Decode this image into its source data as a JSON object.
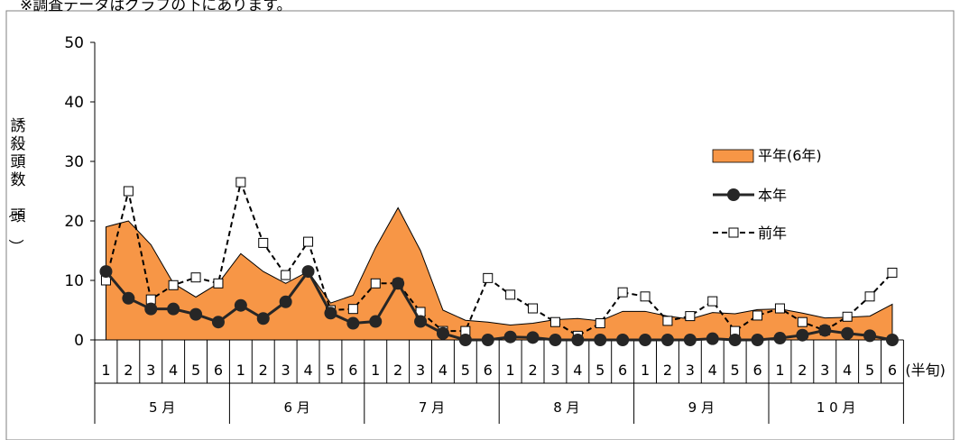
{
  "note": "※調査データはグラフの下にあります。",
  "chart_data": {
    "type": "line",
    "title": "",
    "ylabel": "誘殺頭数（頭）",
    "xunit": "(半旬)",
    "ylim": [
      0,
      50
    ],
    "yticks": [
      0,
      10,
      20,
      30,
      40,
      50
    ],
    "months": [
      "5 月",
      "6 月",
      "7 月",
      "8 月",
      "9 月",
      "1 0 月"
    ],
    "categories": [
      "1",
      "2",
      "3",
      "4",
      "5",
      "6",
      "1",
      "2",
      "3",
      "4",
      "5",
      "6",
      "1",
      "2",
      "3",
      "4",
      "5",
      "6",
      "1",
      "2",
      "3",
      "4",
      "5",
      "6",
      "1",
      "2",
      "3",
      "4",
      "5",
      "6",
      "1",
      "2",
      "3",
      "4",
      "5",
      "6"
    ],
    "series": [
      {
        "name": "平年(6年)",
        "kind": "area",
        "color": "#F79646",
        "values": [
          19,
          20,
          16,
          9.5,
          7.2,
          9.5,
          14.5,
          11.5,
          9.5,
          11.5,
          6.2,
          7.5,
          15.5,
          22.2,
          15,
          5,
          3.3,
          3,
          2.5,
          2.8,
          3.4,
          3.6,
          3.2,
          4.8,
          4.8,
          4,
          3.5,
          4.6,
          4.4,
          5.1,
          5.2,
          4.5,
          3.7,
          3.8,
          4.0,
          6.0
        ]
      },
      {
        "name": "本年",
        "kind": "solid",
        "color": "#262626",
        "values": [
          11.5,
          7,
          5.2,
          5.2,
          4.3,
          3,
          5.8,
          3.6,
          6.4,
          11.5,
          4.5,
          2.8,
          3.1,
          9.5,
          3.1,
          1.1,
          0,
          0,
          0.5,
          0.4,
          0,
          0,
          0,
          0,
          0,
          0,
          0,
          0.2,
          0,
          0,
          0.3,
          0.8,
          1.6,
          1.1,
          0.7,
          0
        ]
      },
      {
        "name": "前年",
        "kind": "dashed",
        "color": "#000000",
        "values": [
          10,
          25,
          6.8,
          9.2,
          10.5,
          9.5,
          26.5,
          16.3,
          10.9,
          16.5,
          5,
          5.2,
          9.5,
          9.5,
          4.7,
          1.5,
          1.5,
          10.4,
          7.6,
          5.3,
          3,
          0.7,
          2.8,
          8,
          7.3,
          3.2,
          4,
          6.5,
          1.5,
          4.1,
          5.3,
          3,
          1.6,
          3.9,
          7.3,
          11.3
        ]
      }
    ],
    "legend_position": "right",
    "grid": false
  }
}
